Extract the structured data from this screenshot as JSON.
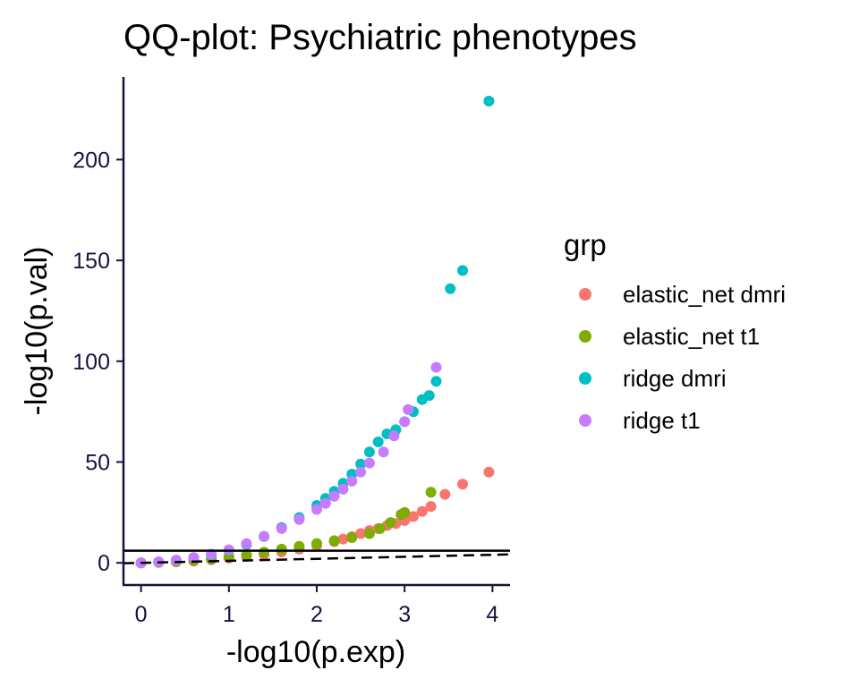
{
  "chart_data": {
    "type": "scatter",
    "title": "QQ-plot: Psychiatric phenotypes",
    "xlabel": "-log10(p.exp)",
    "ylabel": "-log10(p.val)",
    "xlim": [
      -0.2,
      4.2
    ],
    "ylim": [
      -11,
      241
    ],
    "xticks": [
      0,
      1,
      2,
      3,
      4
    ],
    "yticks": [
      0,
      50,
      100,
      150,
      200
    ],
    "grid": false,
    "legend_title": "grp",
    "legend_position": "right",
    "reference_lines": [
      {
        "type": "hline",
        "y": 6,
        "style": "solid",
        "color": "#000000"
      },
      {
        "type": "abline",
        "slope": 1,
        "intercept": 0,
        "style": "dashed",
        "color": "#000000"
      }
    ],
    "series": [
      {
        "name": "elastic_net dmri",
        "color": "#F8766D",
        "x": [
          0.0,
          0.2,
          0.4,
          0.6,
          0.8,
          1.0,
          1.2,
          1.4,
          1.6,
          1.8,
          2.0,
          2.2,
          2.3,
          2.4,
          2.5,
          2.6,
          2.7,
          2.8,
          2.9,
          3.0,
          3.1,
          3.2,
          3.3,
          3.46,
          3.66,
          3.96
        ],
        "y": [
          0.0,
          0.2,
          0.5,
          0.9,
          1.5,
          2.3,
          3.2,
          4.2,
          5.4,
          6.8,
          8.5,
          10.5,
          11.8,
          13.0,
          14.5,
          16.0,
          17.0,
          18.5,
          19.5,
          21.0,
          23.0,
          25.5,
          28.0,
          34.0,
          39.0,
          45.0
        ]
      },
      {
        "name": "elastic_net t1",
        "color": "#7CAE00",
        "x": [
          0.0,
          0.2,
          0.4,
          0.6,
          0.8,
          1.0,
          1.2,
          1.4,
          1.6,
          1.8,
          2.0,
          2.2,
          2.4,
          2.6,
          2.72,
          2.84,
          2.96,
          3.0,
          3.3
        ],
        "y": [
          0.0,
          0.3,
          0.7,
          1.3,
          2.0,
          3.0,
          4.0,
          5.3,
          6.8,
          8.2,
          9.6,
          11.0,
          12.5,
          14.5,
          17.0,
          20.0,
          24.0,
          25.0,
          35.0
        ]
      },
      {
        "name": "ridge dmri",
        "color": "#00BFC4",
        "x": [
          0.0,
          0.2,
          0.4,
          0.6,
          0.8,
          1.0,
          1.2,
          1.4,
          1.6,
          1.8,
          2.0,
          2.1,
          2.2,
          2.3,
          2.4,
          2.5,
          2.6,
          2.7,
          2.8,
          2.9,
          3.0,
          3.1,
          3.2,
          3.28,
          3.36,
          3.52,
          3.66,
          3.96
        ],
        "y": [
          0.0,
          0.5,
          1.3,
          2.5,
          4.0,
          6.2,
          9.0,
          13.0,
          17.5,
          22.5,
          28.5,
          32.0,
          35.5,
          39.5,
          44.0,
          49.0,
          55.0,
          60.0,
          64.0,
          66.0,
          70.0,
          75.0,
          81.0,
          83.0,
          90.0,
          136.0,
          145.0,
          229.0
        ]
      },
      {
        "name": "ridge t1",
        "color": "#C77CFF",
        "x": [
          0.0,
          0.2,
          0.4,
          0.6,
          0.8,
          1.0,
          1.2,
          1.4,
          1.6,
          1.8,
          2.0,
          2.1,
          2.2,
          2.3,
          2.4,
          2.5,
          2.6,
          2.76,
          2.88,
          3.0,
          3.04,
          3.36
        ],
        "y": [
          0.0,
          0.5,
          1.4,
          2.6,
          4.3,
          6.5,
          9.5,
          13.2,
          17.0,
          21.5,
          26.5,
          29.5,
          33.0,
          36.5,
          40.5,
          45.0,
          49.5,
          55.0,
          63.0,
          70.0,
          76.0,
          97.0
        ]
      }
    ]
  }
}
